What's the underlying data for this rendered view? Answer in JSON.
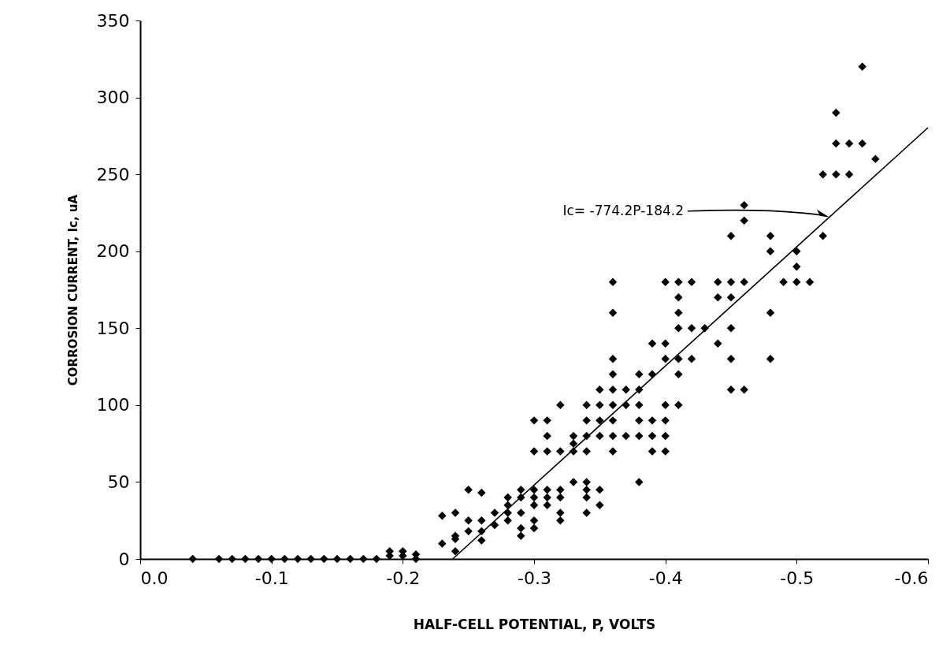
{
  "chart_data": {
    "type": "scatter",
    "xlabel": "HALF-CELL POTENTIAL, P, VOLTS",
    "ylabel": "CORROSION CURRENT, Ic, uA",
    "xlim": [
      0,
      -0.6
    ],
    "xticks": [
      {
        "value": 0,
        "label": "0.0"
      },
      -0.1,
      -0.2,
      -0.3,
      -0.4,
      -0.5,
      -0.6
    ],
    "ylim": [
      0,
      350
    ],
    "yticks": [
      0,
      50,
      100,
      150,
      200,
      250,
      300,
      350
    ],
    "marker": "diamond",
    "annotations": [
      {
        "text": "Ic= -774.2P-184.2",
        "x": -0.525,
        "y": 222
      }
    ],
    "series": [
      {
        "color": "#000000",
        "x": [
          -0.04,
          -0.06,
          -0.07,
          -0.08,
          -0.09,
          -0.1,
          -0.11,
          -0.12,
          -0.13,
          -0.14,
          -0.15,
          -0.16,
          -0.17,
          -0.18,
          -0.19,
          -0.19,
          -0.2,
          -0.2,
          -0.21,
          -0.21,
          -0.23,
          -0.23,
          -0.24,
          -0.24,
          -0.24,
          -0.24,
          -0.25,
          -0.25,
          -0.25,
          -0.26,
          -0.26,
          -0.26,
          -0.26,
          -0.27,
          -0.27,
          -0.28,
          -0.28,
          -0.28,
          -0.28,
          -0.29,
          -0.29,
          -0.29,
          -0.29,
          -0.29,
          -0.3,
          -0.3,
          -0.3,
          -0.3,
          -0.3,
          -0.3,
          -0.3,
          -0.31,
          -0.31,
          -0.31,
          -0.31,
          -0.31,
          -0.31,
          -0.32,
          -0.32,
          -0.32,
          -0.32,
          -0.32,
          -0.32,
          -0.33,
          -0.33,
          -0.33,
          -0.33,
          -0.34,
          -0.34,
          -0.34,
          -0.34,
          -0.34,
          -0.34,
          -0.34,
          -0.34,
          -0.35,
          -0.35,
          -0.35,
          -0.35,
          -0.35,
          -0.35,
          -0.36,
          -0.36,
          -0.36,
          -0.36,
          -0.36,
          -0.36,
          -0.36,
          -0.36,
          -0.36,
          -0.37,
          -0.37,
          -0.37,
          -0.38,
          -0.38,
          -0.38,
          -0.38,
          -0.38,
          -0.38,
          -0.39,
          -0.39,
          -0.39,
          -0.39,
          -0.39,
          -0.4,
          -0.4,
          -0.4,
          -0.4,
          -0.4,
          -0.4,
          -0.4,
          -0.41,
          -0.41,
          -0.41,
          -0.41,
          -0.41,
          -0.41,
          -0.41,
          -0.42,
          -0.42,
          -0.42,
          -0.43,
          -0.44,
          -0.44,
          -0.44,
          -0.45,
          -0.45,
          -0.45,
          -0.45,
          -0.45,
          -0.45,
          -0.46,
          -0.46,
          -0.46,
          -0.46,
          -0.48,
          -0.48,
          -0.48,
          -0.48,
          -0.49,
          -0.5,
          -0.5,
          -0.5,
          -0.51,
          -0.52,
          -0.52,
          -0.53,
          -0.53,
          -0.53,
          -0.54,
          -0.54,
          -0.55,
          -0.55,
          -0.56
        ],
        "values": [
          0,
          0,
          0,
          0,
          0,
          0,
          0,
          0,
          0,
          0,
          0,
          0,
          0,
          0,
          2,
          5,
          5,
          2,
          3,
          0,
          10,
          28,
          5,
          13,
          15,
          30,
          18,
          25,
          45,
          12,
          18,
          25,
          43,
          22,
          30,
          25,
          30,
          35,
          40,
          15,
          20,
          30,
          40,
          45,
          20,
          25,
          35,
          40,
          45,
          70,
          90,
          35,
          40,
          45,
          70,
          80,
          90,
          25,
          30,
          40,
          45,
          70,
          100,
          50,
          70,
          75,
          80,
          30,
          40,
          45,
          50,
          70,
          80,
          90,
          100,
          35,
          45,
          80,
          90,
          100,
          110,
          70,
          80,
          90,
          100,
          110,
          120,
          130,
          160,
          180,
          80,
          100,
          110,
          50,
          80,
          90,
          100,
          110,
          120,
          70,
          80,
          90,
          120,
          140,
          70,
          80,
          90,
          100,
          130,
          140,
          180,
          100,
          120,
          130,
          150,
          160,
          170,
          180,
          130,
          150,
          180,
          150,
          140,
          170,
          180,
          110,
          130,
          150,
          170,
          180,
          210,
          110,
          180,
          220,
          230,
          130,
          160,
          200,
          210,
          180,
          180,
          190,
          200,
          180,
          210,
          250,
          250,
          270,
          290,
          250,
          270,
          270,
          320,
          260
        ]
      },
      {
        "type": "line",
        "marker": "none",
        "color": "#000000",
        "x": [
          -0.238,
          -0.6
        ],
        "values": [
          0,
          280.3
        ]
      }
    ]
  }
}
